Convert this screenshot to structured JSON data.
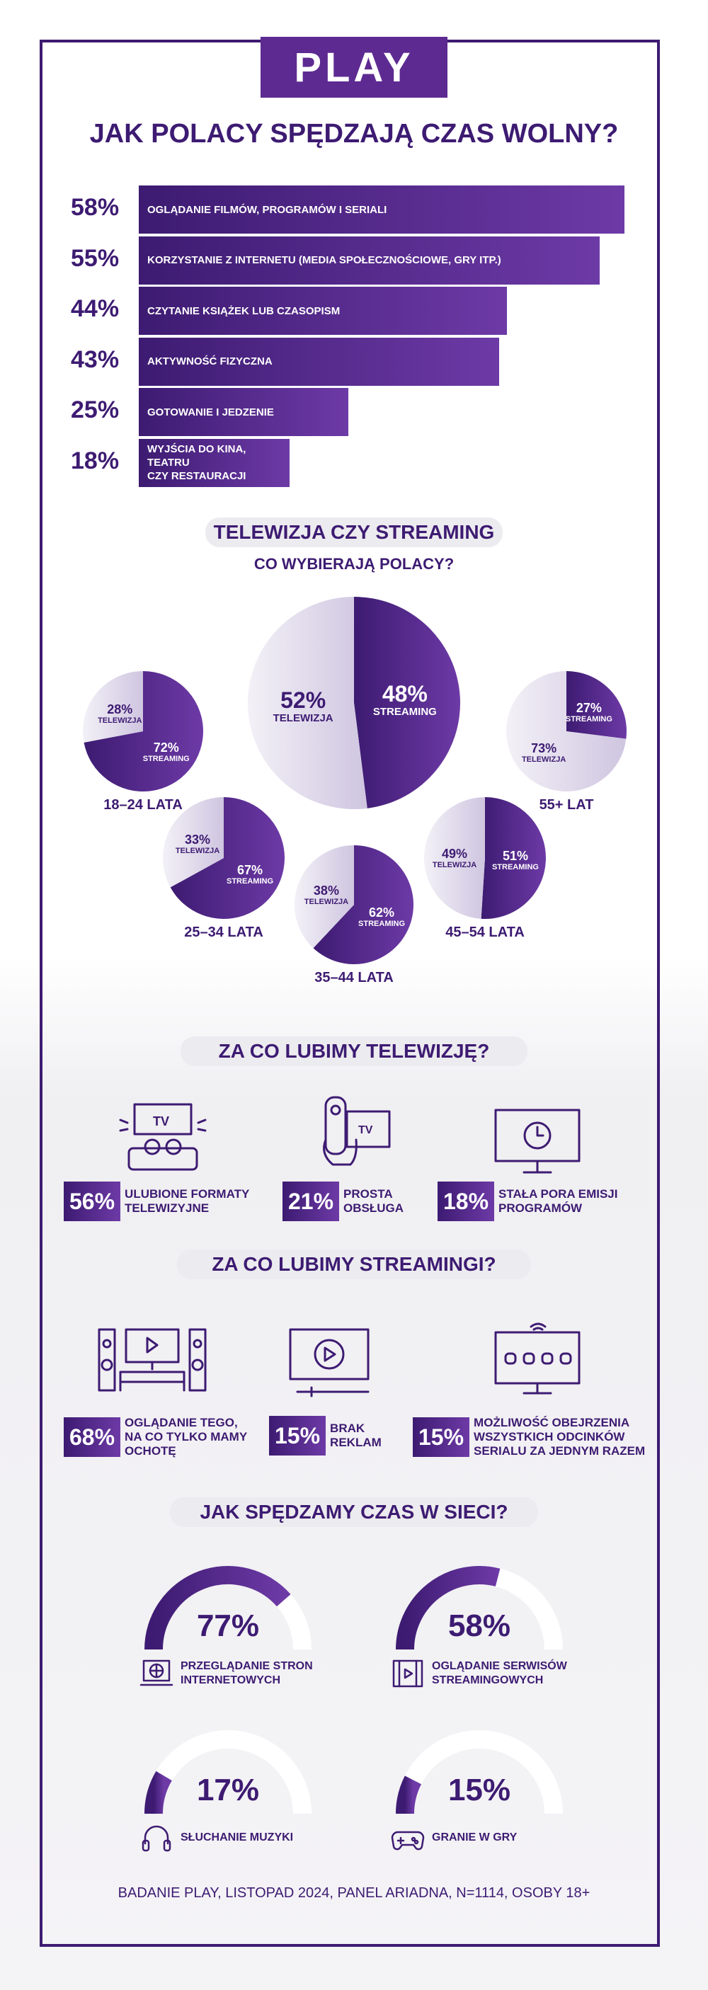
{
  "logo": "PLAY",
  "title": "JAK POLACY SPĘDZAJĄ CZAS WOLNY?",
  "activities": [
    {
      "pct": "58%",
      "value": 58,
      "label": "OGLĄDANIE FILMÓW, PROGRAMÓW I SERIALI"
    },
    {
      "pct": "55%",
      "value": 55,
      "label": "KORZYSTANIE Z INTERNETU (MEDIA SPOŁECZNOŚCIOWE, GRY ITP.)"
    },
    {
      "pct": "44%",
      "value": 44,
      "label": "CZYTANIE KSIĄŻEK LUB CZASOPISM"
    },
    {
      "pct": "43%",
      "value": 43,
      "label": "AKTYWNOŚĆ FIZYCZNA"
    },
    {
      "pct": "25%",
      "value": 25,
      "label": "GOTOWANIE I JEDZENIE"
    },
    {
      "pct": "18%",
      "value": 18,
      "label": "WYJŚCIA DO KINA, TEATRU\nCZY RESTAURACJI"
    }
  ],
  "tv_section": {
    "heading": "TELEWIZJA CZY STREAMING",
    "subheading": "CO WYBIERAJĄ POLACY?",
    "tv": "TELEWIZJA",
    "streaming": "STREAMING"
  },
  "chart_data": {
    "type": "pie",
    "groups": [
      {
        "name": "",
        "tv": 52,
        "streaming": 48
      },
      {
        "name": "18–24 LATA",
        "tv": 28,
        "streaming": 72
      },
      {
        "name": "25–34 LATA",
        "tv": 33,
        "streaming": 67
      },
      {
        "name": "35–44 LATA",
        "tv": 38,
        "streaming": 62
      },
      {
        "name": "45–54 LATA",
        "tv": 49,
        "streaming": 51
      },
      {
        "name": "55+ LAT",
        "tv": 73,
        "streaming": 27
      }
    ]
  },
  "tv_likes": {
    "heading": "ZA CO LUBIMY TELEWIZJĘ?",
    "items": [
      {
        "pct": "56%",
        "text": "ULUBIONE FORMATY\nTELEWIZYJNE",
        "icon": "couch-tv-icon"
      },
      {
        "pct": "21%",
        "text": "PROSTA\nOBSŁUGA",
        "icon": "remote-icon"
      },
      {
        "pct": "18%",
        "text": "STAŁA PORA EMISJI\nPROGRAMÓW",
        "icon": "clock-tv-icon"
      }
    ]
  },
  "stream_likes": {
    "heading": "ZA CO LUBIMY STREAMINGI?",
    "items": [
      {
        "pct": "68%",
        "text": "OGLĄDANIE TEGO,\nNA CO TYLKO MAMY\nOCHOTĘ",
        "icon": "home-theater-icon"
      },
      {
        "pct": "15%",
        "text": "BRAK\nREKLAM",
        "icon": "play-screen-icon"
      },
      {
        "pct": "15%",
        "text": "MOŻLIWOŚĆ OBEJRZENIA\nWSZYSTKICH ODCINKÓW\nSERIALU ZA JEDNYM RAZEM",
        "icon": "episodes-tv-icon"
      }
    ]
  },
  "online": {
    "heading": "JAK SPĘDZAMY CZAS W SIECI?",
    "items": [
      {
        "pct": "77%",
        "value": 77,
        "text": "PRZEGLĄDANIE STRON\nINTERNETOWYCH",
        "icon": "browser-icon"
      },
      {
        "pct": "58%",
        "value": 58,
        "text": "OGLĄDANIE SERWISÓW\nSTREAMINGOWYCH",
        "icon": "film-play-icon"
      },
      {
        "pct": "17%",
        "value": 17,
        "text": "SŁUCHANIE MUZYKI",
        "icon": "headphones-icon"
      },
      {
        "pct": "15%",
        "value": 15,
        "text": "GRANIE W GRY",
        "icon": "gamepad-icon"
      }
    ]
  },
  "footer": "BADANIE PLAY, LISTOPAD 2024, PANEL ARIADNA, N=1114, OSOBY 18+",
  "colors": {
    "primary": "#3d1b72",
    "accent": "#6d3aa6",
    "light": "#e4dfee"
  }
}
